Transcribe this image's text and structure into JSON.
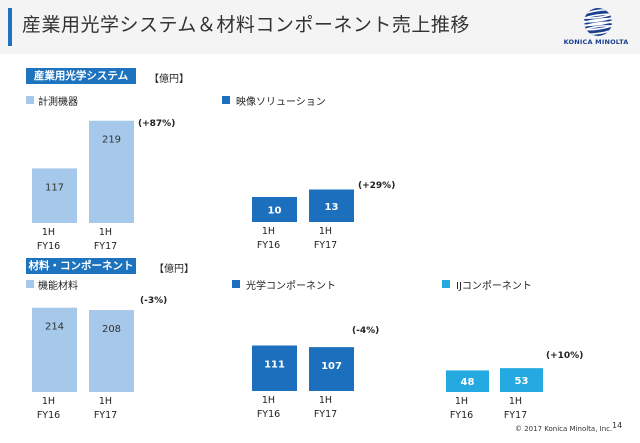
{
  "header": {
    "title": "産業用光学システム＆材料コンポーネント売上推移"
  },
  "logo": {
    "text": "KONICA MINOLTA"
  },
  "footer": {
    "copyright": "© 2017 Konica Minolta, Inc.",
    "page": "14"
  },
  "sections": [
    {
      "label": "産業用光学システム",
      "unit": "【億円】"
    },
    {
      "label": "材料・コンポーネント",
      "unit": "【億円】"
    }
  ],
  "colors": {
    "accent": "#1e73be",
    "light": "#a6c8ea",
    "mid": "#1b6fbd",
    "cyan": "#24a9e1"
  },
  "chart_data": [
    {
      "type": "bar",
      "legend": "計測機器",
      "color": "#a6c8ea",
      "categories": [
        "1H\nFY16",
        "1H\nFY17"
      ],
      "values": [
        117,
        219
      ],
      "change": "(+87%)",
      "value_label_color": "#333333"
    },
    {
      "type": "bar",
      "legend": "映像ソリューション",
      "color": "#1b6fbd",
      "categories": [
        "1H\nFY16",
        "1H\nFY17"
      ],
      "values": [
        10,
        13
      ],
      "change": "(+29%)",
      "value_label_color": "#ffffff"
    },
    {
      "type": "bar",
      "legend": "機能材料",
      "color": "#a6c8ea",
      "categories": [
        "1H\nFY16",
        "1H\nFY17"
      ],
      "values": [
        214,
        208
      ],
      "change": "(-3%)",
      "value_label_color": "#333333"
    },
    {
      "type": "bar",
      "legend": "光学コンポーネント",
      "color": "#1b6fbd",
      "categories": [
        "1H\nFY16",
        "1H\nFY17"
      ],
      "values": [
        111,
        107
      ],
      "change": "(-4%)",
      "value_label_color": "#ffffff"
    },
    {
      "type": "bar",
      "legend": "IJコンポーネント",
      "color": "#24a9e1",
      "categories": [
        "1H\nFY16",
        "1H\nFY17"
      ],
      "values": [
        48,
        53
      ],
      "change": "(+10%)",
      "value_label_color": "#ffffff"
    }
  ]
}
